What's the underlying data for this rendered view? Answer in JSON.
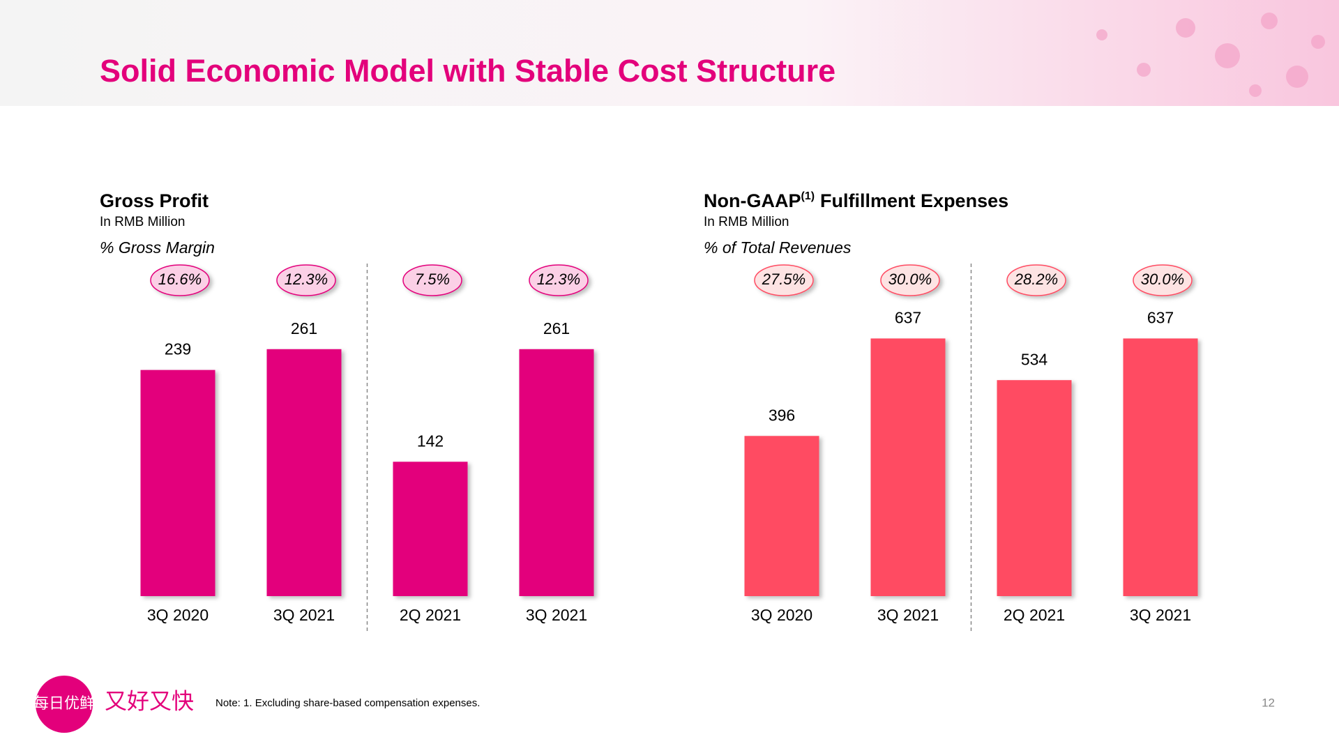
{
  "title": "Solid Economic Model with Stable Cost Structure",
  "chart_data": [
    {
      "type": "bar",
      "title": "Gross Profit",
      "subtitle": "In RMB Million",
      "annotation": "% Gross Margin",
      "margin_labels": [
        "16.6%",
        "12.3%",
        "7.5%",
        "12.3%"
      ],
      "categories": [
        "3Q 2020",
        "3Q 2021",
        "2Q 2021",
        "3Q 2021"
      ],
      "values": [
        239,
        261,
        142,
        261
      ],
      "color": "#e3007b",
      "ylim": [
        0,
        280
      ]
    },
    {
      "type": "bar",
      "title": "Non-GAAP",
      "title_superscript": "(1)",
      "title_suffix": "Fulfillment Expenses",
      "subtitle": "In RMB Million",
      "annotation": "% of Total Revenues",
      "margin_labels": [
        "27.5%",
        "30.0%",
        "28.2%",
        "30.0%"
      ],
      "categories": [
        "3Q 2020",
        "3Q 2021",
        "2Q 2021",
        "3Q 2021"
      ],
      "values": [
        396,
        637,
        534,
        637
      ],
      "color": "#ff4b62",
      "ylim": [
        0,
        655
      ]
    }
  ],
  "logo_text": "每日优鲜",
  "slogan": "又好又快",
  "note": "Note: 1. Excluding share-based compensation expenses.",
  "page_number": "12"
}
